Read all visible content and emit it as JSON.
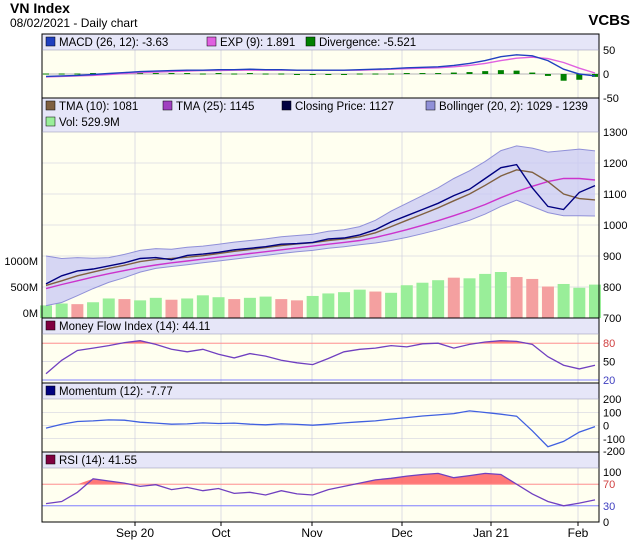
{
  "header": {
    "title": "VN Index",
    "subtitle": "08/02/2021 - Daily chart",
    "brand": "VCBS"
  },
  "colors": {
    "plot_bg": "#fffff0",
    "legend_bg": "#e6e6f8",
    "border": "#000000",
    "grid": "#c8c8dc",
    "closing": "#000080",
    "tma10": "#806040",
    "tma25": "#cc33cc",
    "bollinger_band": "#c8c8f4",
    "bollinger_line": "#9090d8",
    "vol_up": "#99ee99",
    "vol_down": "#f4a0a0",
    "macd": "#2040c0",
    "exp": "#e060e0",
    "divergence": "#008000",
    "level_high": "#ff9090",
    "level_low": "#8080ff",
    "fill_high": "#ff6060",
    "osc_line": "#7040c0",
    "momentum": "#4060e0"
  },
  "x_axis": {
    "ticks": [
      "Sep 20",
      "Oct",
      "Nov",
      "Dec",
      "Jan 21",
      "Feb"
    ]
  },
  "chart_data": [
    {
      "type": "line",
      "title": "MACD",
      "legend": [
        {
          "label": "MACD (26, 12): -3.63",
          "color": "#1f3fbf"
        },
        {
          "label": "EXP (9): 1.891",
          "color": "#e060e0"
        },
        {
          "label": "Divergence: -5.521",
          "color": "#008000"
        }
      ],
      "ylim": [
        -50,
        50
      ],
      "y_ticks": [
        "50",
        "0",
        "-50"
      ],
      "grid": true,
      "series": [
        {
          "name": "MACD (26, 12)",
          "values": [
            -5,
            -4,
            -3,
            -1,
            1,
            3,
            5,
            6,
            7,
            8,
            8,
            9,
            9,
            10,
            9,
            9,
            8,
            8,
            8,
            8,
            9,
            10,
            11,
            13,
            14,
            15,
            18,
            22,
            28,
            36,
            40,
            38,
            28,
            10,
            0,
            -4
          ]
        },
        {
          "name": "EXP (9)",
          "values": [
            -6,
            -5,
            -4,
            -3,
            -1,
            1,
            3,
            4,
            5,
            6,
            7,
            7,
            8,
            8,
            8,
            8,
            8,
            8,
            8,
            8,
            8,
            9,
            10,
            11,
            12,
            13,
            15,
            18,
            22,
            28,
            33,
            35,
            32,
            24,
            12,
            2
          ]
        },
        {
          "name": "Divergence",
          "values": [
            1,
            1,
            1,
            2,
            2,
            2,
            2,
            2,
            2,
            2,
            1,
            2,
            1,
            2,
            1,
            1,
            0,
            0,
            0,
            0,
            1,
            1,
            1,
            2,
            2,
            2,
            3,
            4,
            6,
            8,
            7,
            3,
            -4,
            -14,
            -12,
            -6
          ]
        }
      ]
    },
    {
      "type": "line",
      "title": "Price",
      "legend": [
        {
          "label": "TMA (10): 1081",
          "color": "#806040"
        },
        {
          "label": "TMA (25): 1145",
          "color": "#a040c0"
        },
        {
          "label": "Closing Price: 1127",
          "color": "#000040"
        },
        {
          "label": "Bollinger (20, 2): 1029 - 1239",
          "color": "#9090d8"
        },
        {
          "label": "Vol: 529.9M",
          "color": "#99ee99"
        }
      ],
      "ylim": [
        700,
        1300
      ],
      "y_ticks": [
        "1300",
        "1200",
        "1100",
        "1000",
        "900",
        "800",
        "700"
      ],
      "volume_ticks": [
        "1000M",
        "500M",
        "0M"
      ],
      "volume_max": 2000,
      "grid": true,
      "series": [
        {
          "name": "Closing Price",
          "values": [
            810,
            836,
            852,
            858,
            868,
            878,
            892,
            895,
            888,
            902,
            906,
            912,
            920,
            925,
            930,
            938,
            940,
            944,
            955,
            958,
            968,
            985,
            1010,
            1030,
            1050,
            1070,
            1095,
            1115,
            1150,
            1185,
            1195,
            1120,
            1060,
            1050,
            1105,
            1127
          ]
        },
        {
          "name": "TMA (10)",
          "values": [
            805,
            820,
            836,
            848,
            860,
            870,
            882,
            889,
            892,
            896,
            901,
            908,
            915,
            921,
            927,
            934,
            939,
            943,
            950,
            955,
            962,
            975,
            995,
            1015,
            1035,
            1055,
            1078,
            1100,
            1128,
            1158,
            1178,
            1170,
            1140,
            1100,
            1085,
            1081
          ]
        },
        {
          "name": "TMA (25)",
          "values": [
            795,
            808,
            820,
            832,
            843,
            853,
            863,
            871,
            878,
            884,
            890,
            896,
            902,
            908,
            914,
            920,
            926,
            932,
            938,
            944,
            950,
            960,
            972,
            985,
            999,
            1014,
            1030,
            1047,
            1066,
            1088,
            1108,
            1125,
            1140,
            1150,
            1150,
            1145
          ]
        },
        {
          "name": "Bollinger Upper",
          "values": [
            900,
            892,
            895,
            893,
            895,
            905,
            918,
            924,
            922,
            928,
            932,
            938,
            945,
            950,
            955,
            962,
            966,
            970,
            980,
            985,
            995,
            1015,
            1045,
            1070,
            1095,
            1120,
            1150,
            1175,
            1205,
            1240,
            1255,
            1248,
            1235,
            1240,
            1245,
            1239
          ]
        },
        {
          "name": "Bollinger Lower",
          "values": [
            740,
            750,
            772,
            795,
            815,
            830,
            848,
            860,
            866,
            872,
            878,
            884,
            890,
            896,
            902,
            908,
            914,
            918,
            925,
            930,
            936,
            942,
            950,
            960,
            972,
            985,
            1000,
            1015,
            1035,
            1060,
            1080,
            1060,
            1040,
            1030,
            1030,
            1029
          ]
        }
      ],
      "volume": [
        200,
        230,
        220,
        250,
        310,
        300,
        280,
        320,
        290,
        310,
        360,
        330,
        300,
        320,
        340,
        300,
        280,
        350,
        390,
        410,
        450,
        420,
        400,
        520,
        560,
        600,
        640,
        630,
        700,
        730,
        650,
        620,
        500,
        540,
        480,
        530
      ],
      "volume_up": [
        true,
        true,
        false,
        true,
        true,
        false,
        true,
        true,
        false,
        true,
        true,
        true,
        false,
        true,
        true,
        false,
        false,
        true,
        true,
        true,
        true,
        false,
        true,
        true,
        true,
        true,
        false,
        true,
        true,
        true,
        false,
        false,
        false,
        true,
        true,
        true
      ]
    },
    {
      "type": "line",
      "title": "Money Flow Index",
      "legend": [
        {
          "label": "Money Flow Index (14): 44.11",
          "color": "#800040"
        }
      ],
      "ylim": [
        15,
        95
      ],
      "levels": [
        80,
        20
      ],
      "y_ticks": [
        "80",
        "50",
        "20"
      ],
      "grid": true,
      "series": [
        {
          "name": "Money Flow Index (14)",
          "values": [
            30,
            52,
            68,
            72,
            76,
            81,
            84,
            78,
            70,
            66,
            70,
            62,
            56,
            63,
            59,
            52,
            48,
            45,
            55,
            66,
            70,
            72,
            76,
            74,
            79,
            80,
            72,
            78,
            82,
            84,
            83,
            78,
            58,
            44,
            38,
            44
          ]
        }
      ]
    },
    {
      "type": "line",
      "title": "Momentum",
      "legend": [
        {
          "label": "Momentum (12): -7.77",
          "color": "#000080"
        }
      ],
      "ylim": [
        -200,
        200
      ],
      "y_ticks": [
        "200",
        "100",
        "0",
        "-100",
        "-200"
      ],
      "grid": true,
      "series": [
        {
          "name": "Momentum (12)",
          "values": [
            -20,
            10,
            30,
            35,
            42,
            40,
            25,
            18,
            10,
            12,
            20,
            15,
            18,
            10,
            5,
            12,
            8,
            2,
            10,
            20,
            28,
            35,
            48,
            60,
            72,
            80,
            90,
            110,
            98,
            85,
            70,
            -40,
            -160,
            -120,
            -50,
            -8
          ]
        }
      ]
    },
    {
      "type": "line",
      "title": "RSI",
      "legend": [
        {
          "label": "RSI (14): 41.55",
          "color": "#800040"
        }
      ],
      "ylim": [
        0,
        100
      ],
      "levels": [
        70,
        30
      ],
      "y_ticks": [
        "100",
        "70",
        "30",
        "0"
      ],
      "grid": true,
      "series": [
        {
          "name": "RSI (14)",
          "values": [
            34,
            38,
            55,
            80,
            76,
            72,
            66,
            69,
            60,
            64,
            58,
            62,
            53,
            55,
            50,
            58,
            52,
            50,
            60,
            66,
            72,
            78,
            81,
            85,
            88,
            90,
            82,
            86,
            90,
            88,
            70,
            52,
            38,
            30,
            35,
            41
          ]
        }
      ]
    }
  ]
}
